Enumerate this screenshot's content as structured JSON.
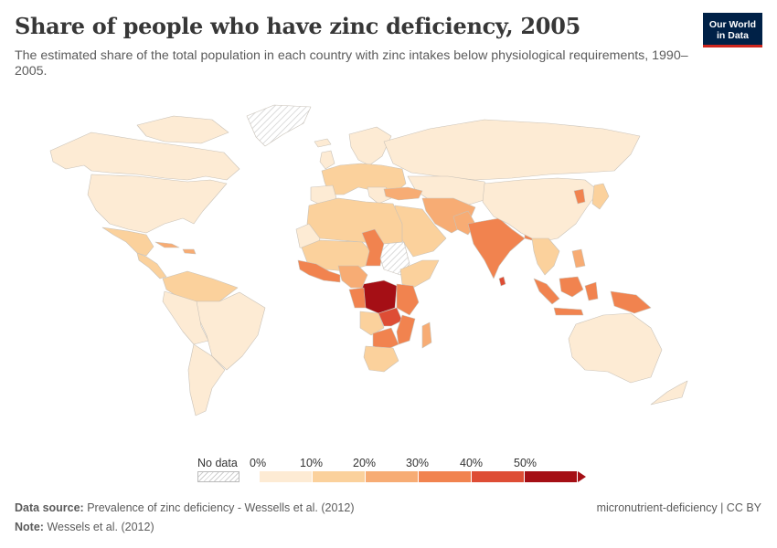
{
  "header": {
    "title": "Share of people who have zinc deficiency, 2005",
    "subtitle": "The estimated share of the total population in each country with zinc intakes below physiological requirements, 1990–2005.",
    "logo_line1": "Our World",
    "logo_line2": "in Data"
  },
  "legend": {
    "no_data_label": "No data",
    "ticks": [
      "0%",
      "10%",
      "20%",
      "30%",
      "40%",
      "50%"
    ],
    "colors": [
      "#fdebd4",
      "#fbd19c",
      "#f7ac74",
      "#f1834f",
      "#de4d35",
      "#a50f15"
    ]
  },
  "footer": {
    "source_label": "Data source:",
    "source_text": "Prevalence of zinc deficiency - Wessells et al. (2012)",
    "note_label": "Note:",
    "note_text": "Wessels et al. (2012)",
    "slug": "micronutrient-deficiency | CC BY"
  }
}
